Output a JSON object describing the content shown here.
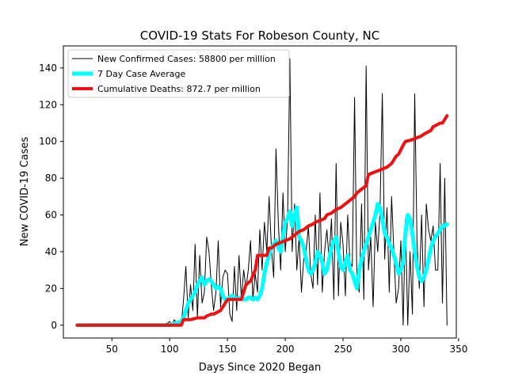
{
  "chart_data": {
    "type": "line",
    "title": "COVID-19 Stats For Robeson County, NC",
    "xlabel": "Days Since 2020 Began",
    "ylabel": "New COVID-19 Cases",
    "xlim": [
      8,
      348
    ],
    "ylim": [
      -7,
      152
    ],
    "xticks": [
      50,
      100,
      150,
      200,
      250,
      300,
      350
    ],
    "yticks": [
      0,
      20,
      40,
      60,
      80,
      100,
      120,
      140
    ],
    "grid": false,
    "legend_position": "top-left",
    "series": [
      {
        "name": "New Confirmed Cases: 58800 per million",
        "color": "#000000",
        "line_width": 1,
        "x": [
          20,
          30,
          40,
          50,
          60,
          70,
          80,
          90,
          98,
          100,
          102,
          104,
          106,
          108,
          110,
          112,
          114,
          116,
          118,
          120,
          122,
          124,
          126,
          128,
          130,
          132,
          134,
          136,
          138,
          140,
          142,
          144,
          146,
          148,
          150,
          152,
          154,
          156,
          158,
          160,
          162,
          164,
          166,
          168,
          170,
          172,
          174,
          176,
          178,
          180,
          182,
          184,
          186,
          188,
          190,
          192,
          194,
          196,
          198,
          200,
          202,
          204,
          206,
          208,
          210,
          212,
          214,
          216,
          218,
          220,
          222,
          224,
          226,
          228,
          230,
          232,
          234,
          236,
          238,
          240,
          242,
          244,
          246,
          248,
          250,
          252,
          254,
          256,
          258,
          260,
          262,
          264,
          266,
          268,
          270,
          272,
          274,
          276,
          278,
          280,
          282,
          284,
          286,
          288,
          290,
          292,
          294,
          296,
          298,
          300,
          302,
          304,
          306,
          308,
          310,
          312,
          314,
          316,
          318,
          320,
          322,
          324,
          326,
          328,
          330,
          332,
          334,
          336,
          338,
          340
        ],
        "y": [
          0,
          0,
          0,
          0,
          0,
          0,
          0,
          0,
          1,
          2,
          0,
          3,
          1,
          2,
          0,
          14,
          32,
          4,
          22,
          8,
          44,
          4,
          38,
          12,
          18,
          48,
          40,
          22,
          8,
          18,
          46,
          10,
          26,
          30,
          28,
          6,
          2,
          32,
          8,
          38,
          14,
          30,
          20,
          30,
          46,
          14,
          28,
          18,
          52,
          30,
          56,
          40,
          70,
          42,
          26,
          96,
          56,
          30,
          72,
          40,
          58,
          145,
          40,
          66,
          30,
          48,
          18,
          36,
          40,
          54,
          28,
          20,
          60,
          22,
          72,
          18,
          40,
          52,
          36,
          58,
          14,
          88,
          16,
          56,
          44,
          16,
          60,
          34,
          32,
          124,
          24,
          18,
          66,
          14,
          141,
          30,
          48,
          10,
          56,
          40,
          62,
          126,
          36,
          64,
          18,
          70,
          40,
          12,
          20,
          46,
          0,
          58,
          0,
          40,
          6,
          126,
          46,
          20,
          60,
          10,
          66,
          52,
          46,
          54,
          30,
          30,
          88,
          12,
          80,
          0
        ]
      },
      {
        "name": "7 Day Case Average",
        "color": "#00ffff",
        "line_width": 5,
        "x": [
          20,
          30,
          40,
          50,
          60,
          70,
          80,
          90,
          100,
          105,
          110,
          112,
          114,
          116,
          118,
          120,
          122,
          124,
          126,
          128,
          130,
          132,
          134,
          136,
          138,
          140,
          142,
          144,
          146,
          148,
          150,
          152,
          154,
          156,
          158,
          160,
          162,
          164,
          166,
          168,
          170,
          172,
          174,
          176,
          178,
          180,
          182,
          184,
          186,
          188,
          190,
          192,
          194,
          196,
          198,
          200,
          202,
          204,
          206,
          208,
          210,
          212,
          214,
          216,
          218,
          220,
          222,
          224,
          226,
          228,
          230,
          232,
          234,
          236,
          238,
          240,
          242,
          244,
          246,
          248,
          250,
          252,
          254,
          256,
          258,
          260,
          262,
          264,
          266,
          268,
          270,
          272,
          274,
          276,
          278,
          280,
          282,
          284,
          286,
          288,
          290,
          292,
          294,
          296,
          298,
          300,
          302,
          304,
          306,
          308,
          310,
          312,
          314,
          316,
          318,
          320,
          322,
          324,
          326,
          328,
          330,
          332,
          334,
          336,
          338,
          340
        ],
        "y": [
          0,
          0,
          0,
          0,
          0,
          0,
          0,
          0,
          0,
          1,
          2,
          4,
          8,
          12,
          14,
          16,
          18,
          22,
          24,
          26,
          22,
          24,
          25,
          24,
          22,
          20,
          21,
          20,
          16,
          14,
          14,
          15,
          16,
          15,
          14,
          15,
          15,
          14,
          14,
          15,
          15,
          14,
          15,
          14,
          16,
          20,
          28,
          34,
          38,
          42,
          44,
          46,
          42,
          40,
          48,
          56,
          58,
          62,
          54,
          60,
          64,
          48,
          46,
          42,
          36,
          30,
          28,
          30,
          34,
          40,
          38,
          34,
          28,
          30,
          36,
          42,
          46,
          48,
          40,
          32,
          30,
          34,
          38,
          30,
          28,
          24,
          20,
          30,
          36,
          40,
          44,
          48,
          52,
          56,
          60,
          66,
          64,
          58,
          50,
          48,
          44,
          42,
          38,
          34,
          28,
          30,
          34,
          50,
          60,
          58,
          50,
          40,
          32,
          26,
          24,
          26,
          30,
          36,
          42,
          46,
          48,
          50,
          52,
          54,
          54,
          55
        ]
      },
      {
        "name": "Cumulative Deaths: 872.7 per million",
        "color": "#ee1111",
        "line_width": 4,
        "x": [
          20,
          110,
          112,
          118,
          124,
          126,
          130,
          132,
          136,
          138,
          144,
          148,
          150,
          162,
          164,
          166,
          170,
          174,
          176,
          180,
          184,
          186,
          188,
          192,
          196,
          200,
          204,
          206,
          210,
          212,
          216,
          220,
          224,
          226,
          230,
          234,
          236,
          240,
          244,
          248,
          252,
          256,
          260,
          262,
          266,
          270,
          272,
          276,
          280,
          284,
          288,
          292,
          296,
          298,
          302,
          304,
          310,
          314,
          318,
          320,
          326,
          328,
          334,
          336,
          340
        ],
        "y": [
          0,
          0,
          3,
          3,
          4,
          4,
          4,
          5,
          6,
          6,
          8,
          12,
          14,
          14,
          18,
          22,
          24,
          30,
          38,
          38,
          38,
          42,
          42,
          44,
          45,
          46,
          47,
          48,
          50,
          51,
          52,
          54,
          55,
          56,
          57,
          58,
          60,
          61,
          63,
          64,
          66,
          68,
          70,
          72,
          74,
          76,
          82,
          83,
          84,
          85,
          86,
          88,
          92,
          93,
          98,
          100,
          101,
          102,
          103,
          104,
          106,
          108,
          110,
          110,
          114
        ]
      }
    ]
  }
}
